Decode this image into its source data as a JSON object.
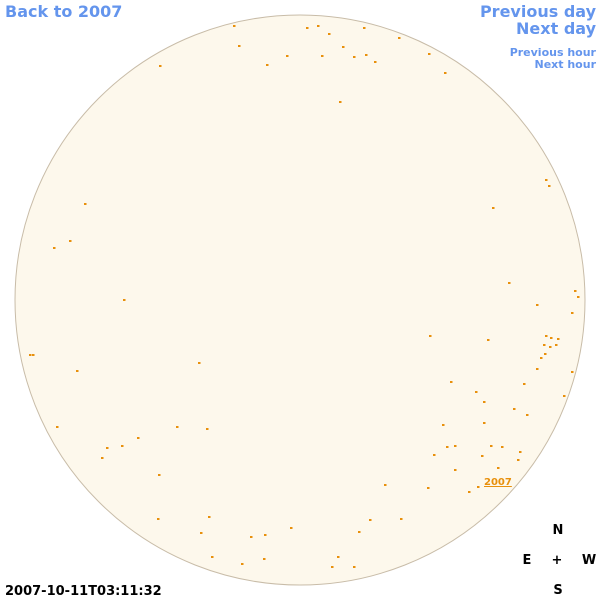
{
  "navigation": {
    "back": "Back to 2007",
    "previous_day": "Previous day",
    "next_day": "Next day",
    "previous_hour": "Previous hour",
    "next_hour": "Next hour"
  },
  "sky_map": {
    "marker_label": "2007",
    "compass": {
      "north": "N",
      "east": "E",
      "center": "+",
      "west": "W",
      "south": "S"
    }
  },
  "timestamp": "2007-10-11T03:11:32"
}
